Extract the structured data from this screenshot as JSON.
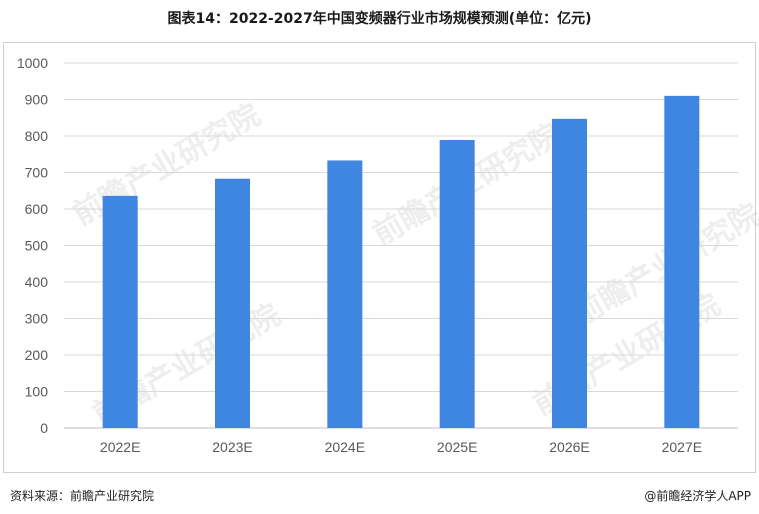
{
  "title": "图表14：2022-2027年中国变频器行业市场规模预测(单位：亿元)",
  "footer": {
    "source": "资料来源：前瞻产业研究院",
    "credit": "@前瞻经济学人APP"
  },
  "watermark": "前瞻产业研究院",
  "colors": {
    "bar": "#3f86e0",
    "grid": "#d9d9d9",
    "axis_text": "#595959"
  },
  "chart_data": {
    "type": "bar",
    "title": "图表14：2022-2027年中国变频器行业市场规模预测(单位：亿元)",
    "categories": [
      "2022E",
      "2023E",
      "2024E",
      "2025E",
      "2026E",
      "2027E"
    ],
    "series": [
      {
        "values": [
          636,
          683,
          733,
          789,
          847,
          910
        ]
      }
    ],
    "yticks": [
      "0",
      "100",
      "200",
      "300",
      "400",
      "500",
      "600",
      "700",
      "800",
      "900",
      "1000"
    ],
    "ylim": [
      0,
      1000
    ],
    "grid": true,
    "legend": "none",
    "xlabel": "",
    "ylabel": ""
  }
}
